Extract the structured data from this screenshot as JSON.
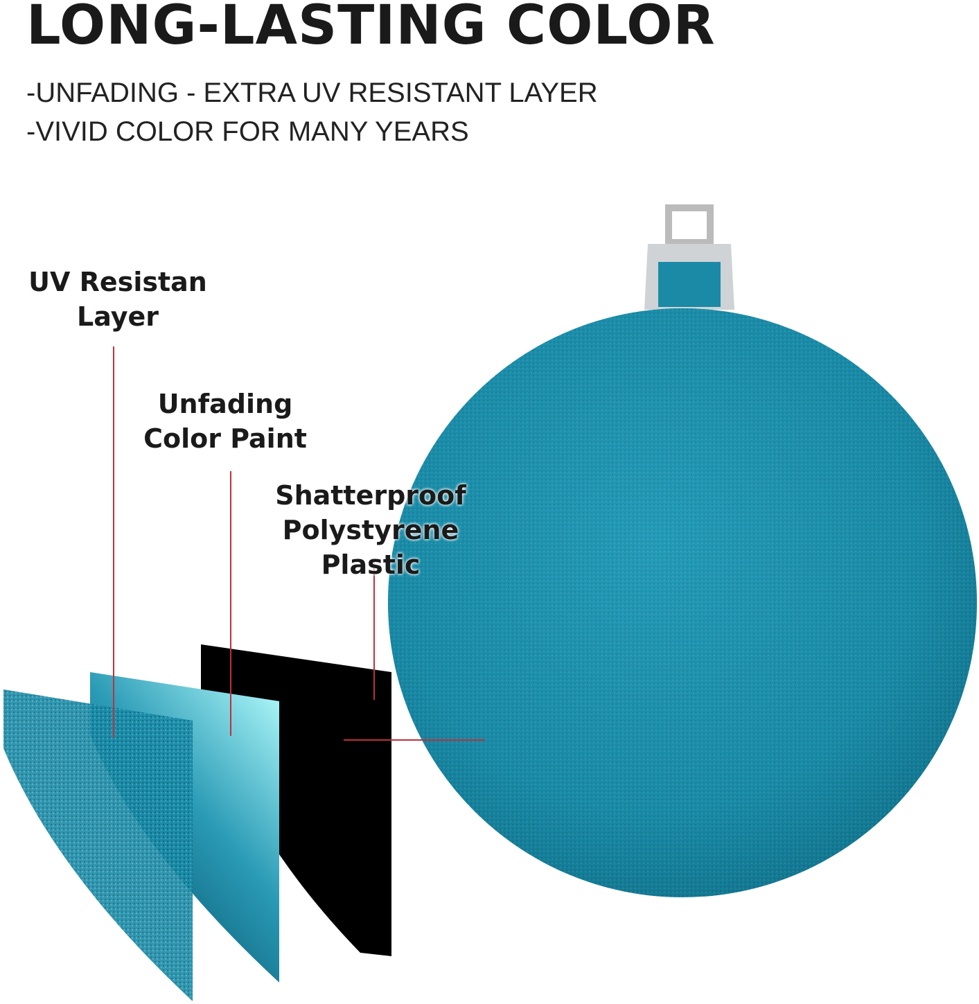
{
  "heading": "LONG-LASTING COLOR",
  "bullets": [
    "-UNFADING - EXTRA UV RESISTANT LAYER",
    "-VIVID COLOR FOR MANY YEARS"
  ],
  "labels": {
    "uv": [
      "UV Resistan",
      "Layer"
    ],
    "paint": [
      "Unfading",
      "Color Paint"
    ],
    "plastic": [
      "Shatterproof",
      "Polystyrene Plastic"
    ]
  },
  "colors": {
    "ornament": "#1a8aa6",
    "glitter_dark": "#0c5a70",
    "leader_line": "#c0303a",
    "plastic": "#000000"
  }
}
